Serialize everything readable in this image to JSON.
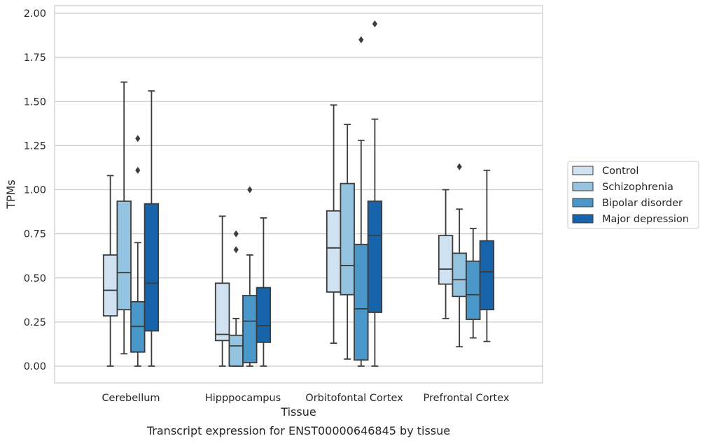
{
  "chart_data": {
    "type": "box",
    "caption": "Transcript expression for ENST00000646845 by tissue",
    "xlabel": "Tissue",
    "ylabel": "TPMs",
    "ylim": [
      -0.1,
      2.05
    ],
    "yticks": [
      "0.00",
      "0.25",
      "0.50",
      "0.75",
      "1.00",
      "1.25",
      "1.50",
      "1.75",
      "2.00"
    ],
    "grid": "horizontal",
    "legend_position": "right",
    "categories": [
      "Cerebellum",
      "Hipppocampus",
      "Orbitofontal Cortex",
      "Prefrontal Cortex"
    ],
    "series": [
      {
        "name": "Control",
        "color": "#d0e1f2",
        "boxes": [
          {
            "q1": 0.285,
            "median": 0.43,
            "q3": 0.63,
            "whisker_low": 0.0,
            "whisker_high": 1.08,
            "outliers": []
          },
          {
            "q1": 0.145,
            "median": 0.18,
            "q3": 0.47,
            "whisker_low": 0.0,
            "whisker_high": 0.85,
            "outliers": []
          },
          {
            "q1": 0.42,
            "median": 0.67,
            "q3": 0.88,
            "whisker_low": 0.13,
            "whisker_high": 1.48,
            "outliers": []
          },
          {
            "q1": 0.465,
            "median": 0.55,
            "q3": 0.74,
            "whisker_low": 0.27,
            "whisker_high": 1.0,
            "outliers": []
          }
        ]
      },
      {
        "name": "Schizophrenia",
        "color": "#94c4df",
        "boxes": [
          {
            "q1": 0.32,
            "median": 0.53,
            "q3": 0.935,
            "whisker_low": 0.07,
            "whisker_high": 1.61,
            "outliers": []
          },
          {
            "q1": 0.0,
            "median": 0.115,
            "q3": 0.175,
            "whisker_low": 0.0,
            "whisker_high": 0.27,
            "outliers": [
              0.66,
              0.75
            ]
          },
          {
            "q1": 0.405,
            "median": 0.57,
            "q3": 1.035,
            "whisker_low": 0.04,
            "whisker_high": 1.37,
            "outliers": []
          },
          {
            "q1": 0.395,
            "median": 0.49,
            "q3": 0.64,
            "whisker_low": 0.11,
            "whisker_high": 0.89,
            "outliers": [
              1.13
            ]
          }
        ]
      },
      {
        "name": "Bipolar disorder",
        "color": "#4a98c9",
        "boxes": [
          {
            "q1": 0.08,
            "median": 0.225,
            "q3": 0.365,
            "whisker_low": 0.0,
            "whisker_high": 0.7,
            "outliers": [
              1.11,
              1.29
            ]
          },
          {
            "q1": 0.02,
            "median": 0.255,
            "q3": 0.4,
            "whisker_low": 0.0,
            "whisker_high": 0.63,
            "outliers": [
              1.0
            ]
          },
          {
            "q1": 0.035,
            "median": 0.325,
            "q3": 0.69,
            "whisker_low": 0.0,
            "whisker_high": 1.28,
            "outliers": [
              1.85
            ]
          },
          {
            "q1": 0.265,
            "median": 0.405,
            "q3": 0.595,
            "whisker_low": 0.16,
            "whisker_high": 0.78,
            "outliers": []
          }
        ]
      },
      {
        "name": "Major depression",
        "color": "#1764ab",
        "boxes": [
          {
            "q1": 0.2,
            "median": 0.47,
            "q3": 0.92,
            "whisker_low": 0.0,
            "whisker_high": 1.56,
            "outliers": []
          },
          {
            "q1": 0.135,
            "median": 0.23,
            "q3": 0.445,
            "whisker_low": 0.0,
            "whisker_high": 0.84,
            "outliers": []
          },
          {
            "q1": 0.305,
            "median": 0.74,
            "q3": 0.935,
            "whisker_low": 0.0,
            "whisker_high": 1.4,
            "outliers": [
              1.94
            ]
          },
          {
            "q1": 0.32,
            "median": 0.535,
            "q3": 0.71,
            "whisker_low": 0.14,
            "whisker_high": 1.11,
            "outliers": []
          }
        ]
      }
    ]
  }
}
